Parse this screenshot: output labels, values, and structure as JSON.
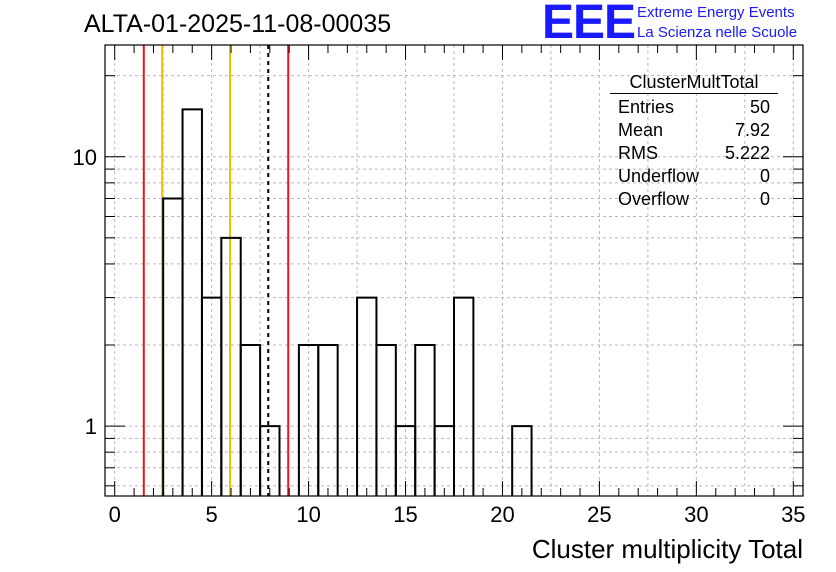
{
  "header": {
    "title": "ALTA-01-2025-11-08-00035",
    "logo_text": "EEE",
    "tagline_1": "Extreme Energy Events",
    "tagline_2": "La Scienza nelle Scuole"
  },
  "stats": {
    "name": "ClusterMultTotal",
    "rows": [
      {
        "label": "Entries",
        "value": "50"
      },
      {
        "label": "Mean",
        "value": "7.92"
      },
      {
        "label": "RMS",
        "value": "5.222"
      },
      {
        "label": "Underflow",
        "value": "0"
      },
      {
        "label": "Overflow",
        "value": "0"
      }
    ]
  },
  "chart_data": {
    "type": "bar",
    "histogram": true,
    "title": "ALTA-01-2025-11-08-00035",
    "xlabel": "Cluster multiplicity Total",
    "ylabel": "",
    "xlim": [
      -0.5,
      35.5
    ],
    "ylim": [
      0.55,
      26
    ],
    "ylog": true,
    "grid": true,
    "x_ticks": [
      0,
      5,
      10,
      15,
      20,
      25,
      30,
      35
    ],
    "x_tick_labels": [
      "0",
      "5",
      "10",
      "15",
      "20",
      "25",
      "30",
      "35"
    ],
    "y_ticks": [
      1,
      10
    ],
    "y_tick_labels": [
      "1",
      "10"
    ],
    "bins": [
      {
        "center": 3,
        "count": 7
      },
      {
        "center": 4,
        "count": 15
      },
      {
        "center": 5,
        "count": 3
      },
      {
        "center": 6,
        "count": 5
      },
      {
        "center": 7,
        "count": 2
      },
      {
        "center": 8,
        "count": 1
      },
      {
        "center": 10,
        "count": 2
      },
      {
        "center": 11,
        "count": 2
      },
      {
        "center": 13,
        "count": 3
      },
      {
        "center": 14,
        "count": 2
      },
      {
        "center": 15,
        "count": 1
      },
      {
        "center": 16,
        "count": 2
      },
      {
        "center": 17,
        "count": 1
      },
      {
        "center": 18,
        "count": 3
      },
      {
        "center": 21,
        "count": 1
      }
    ],
    "vertical_lines": [
      {
        "x": 1.5,
        "color": "#e8141e",
        "style": "solid"
      },
      {
        "x": 2.45,
        "color": "#f0c000",
        "style": "solid"
      },
      {
        "x": 5.95,
        "color": "#f0c000",
        "style": "solid"
      },
      {
        "x": 7.92,
        "color": "#000000",
        "style": "dashed"
      },
      {
        "x": 8.95,
        "color": "#e8141e",
        "style": "solid"
      }
    ],
    "line_color": "#000000"
  }
}
